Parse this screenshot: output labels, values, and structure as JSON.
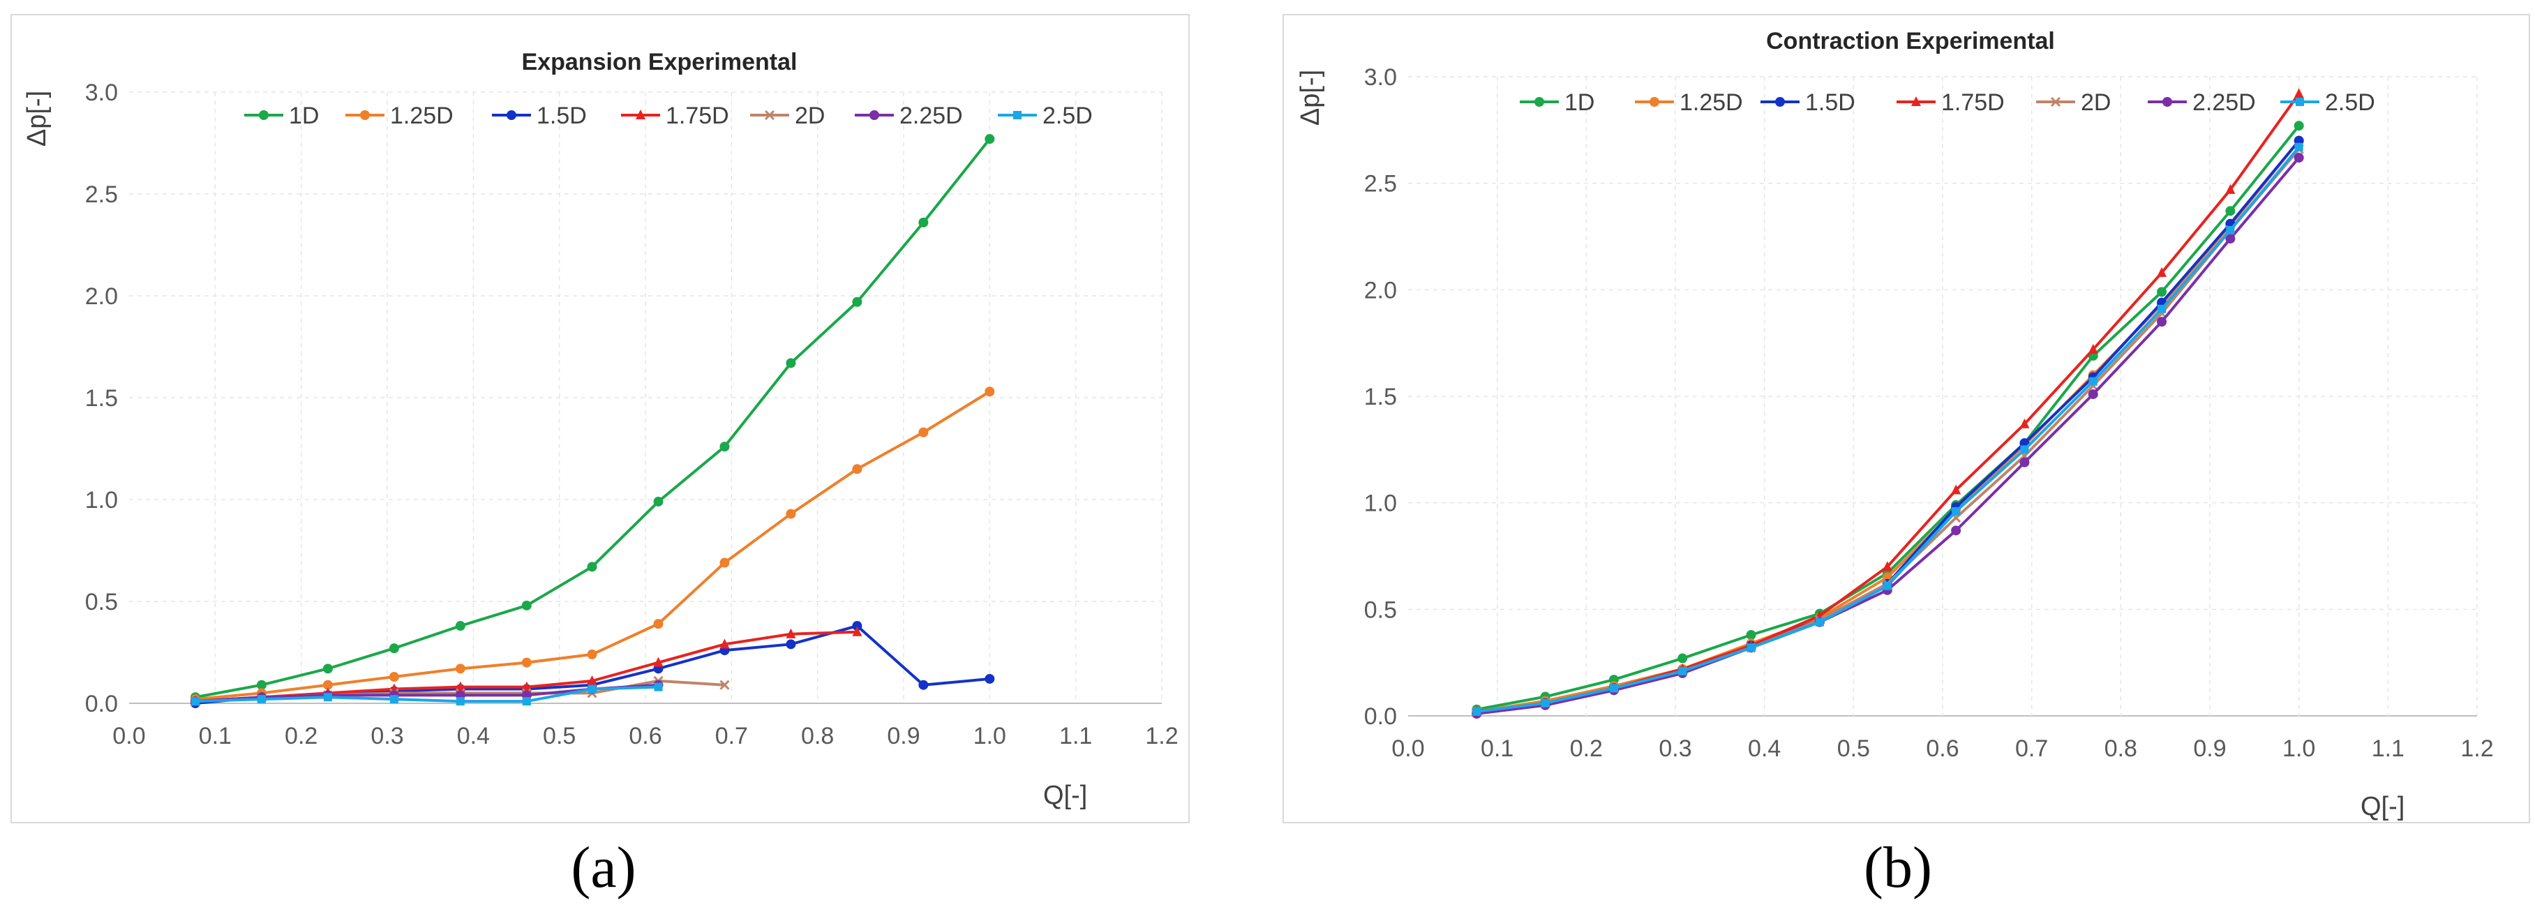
{
  "chart_data": [
    {
      "type": "line",
      "title": "Expansion Experimental",
      "xlabel": "Q[-]",
      "ylabel": "Δp[-]",
      "xlim": [
        0.0,
        1.2
      ],
      "ylim": [
        0.0,
        3.0
      ],
      "xticks": [
        "0.0",
        "0.1",
        "0.2",
        "0.3",
        "0.4",
        "0.5",
        "0.6",
        "0.7",
        "0.8",
        "0.9",
        "1.0",
        "1.1",
        "1.2"
      ],
      "yticks": [
        "0.0",
        "0.5",
        "1.0",
        "1.5",
        "2.0",
        "2.5",
        "3.0"
      ],
      "grid": true,
      "legend_position": "top",
      "series": [
        {
          "name": "1D",
          "color": "#1aa84a",
          "marker": "circle",
          "x": [
            0.077,
            0.154,
            0.231,
            0.308,
            0.385,
            0.462,
            0.538,
            0.615,
            0.692,
            0.769,
            0.846,
            0.923,
            1.0
          ],
          "y": [
            0.03,
            0.09,
            0.17,
            0.27,
            0.38,
            0.48,
            0.67,
            0.99,
            1.26,
            1.67,
            1.97,
            2.36,
            2.77
          ]
        },
        {
          "name": "1.25D",
          "color": "#f07f2a",
          "marker": "circle",
          "x": [
            0.077,
            0.154,
            0.231,
            0.308,
            0.385,
            0.462,
            0.538,
            0.615,
            0.692,
            0.769,
            0.846,
            0.923,
            1.0
          ],
          "y": [
            0.02,
            0.05,
            0.09,
            0.13,
            0.17,
            0.2,
            0.24,
            0.39,
            0.69,
            0.93,
            1.15,
            1.33,
            1.53
          ]
        },
        {
          "name": "1.5D",
          "color": "#1432c8",
          "marker": "circle",
          "x": [
            0.077,
            0.154,
            0.231,
            0.308,
            0.385,
            0.462,
            0.538,
            0.615,
            0.692,
            0.769,
            0.846,
            0.923,
            1.0
          ],
          "y": [
            0.0,
            0.03,
            0.04,
            0.06,
            0.07,
            0.07,
            0.09,
            0.17,
            0.26,
            0.29,
            0.38,
            0.09,
            0.12
          ]
        },
        {
          "name": "1.75D",
          "color": "#e8231f",
          "marker": "triangle",
          "x": [
            0.077,
            0.154,
            0.231,
            0.308,
            0.385,
            0.462,
            0.538,
            0.615,
            0.692,
            0.769,
            0.846
          ],
          "y": [
            0.01,
            0.03,
            0.05,
            0.07,
            0.08,
            0.08,
            0.11,
            0.2,
            0.29,
            0.34,
            0.35
          ]
        },
        {
          "name": "2D",
          "color": "#c0846a",
          "marker": "cross",
          "x": [
            0.077,
            0.154,
            0.231,
            0.308,
            0.385,
            0.462,
            0.538,
            0.615,
            0.692
          ],
          "y": [
            0.01,
            0.03,
            0.04,
            0.05,
            0.05,
            0.05,
            0.05,
            0.11,
            0.09
          ]
        },
        {
          "name": "2.25D",
          "color": "#7a2fa8",
          "marker": "circle",
          "x": [
            0.077,
            0.154,
            0.231,
            0.308,
            0.385,
            0.462,
            0.538,
            0.615
          ],
          "y": [
            0.01,
            0.03,
            0.04,
            0.04,
            0.04,
            0.04,
            0.07,
            0.09
          ]
        },
        {
          "name": "2.5D",
          "color": "#1ba6e8",
          "marker": "square",
          "x": [
            0.077,
            0.154,
            0.231,
            0.308,
            0.385,
            0.462,
            0.538,
            0.615
          ],
          "y": [
            0.01,
            0.02,
            0.03,
            0.02,
            0.01,
            0.01,
            0.07,
            0.08
          ]
        }
      ]
    },
    {
      "type": "line",
      "title": "Contraction Experimental",
      "xlabel": "Q[-]",
      "ylabel": "Δp[-]",
      "xlim": [
        0.0,
        1.2
      ],
      "ylim": [
        0.0,
        3.0
      ],
      "xticks": [
        "0.0",
        "0.1",
        "0.2",
        "0.3",
        "0.4",
        "0.5",
        "0.6",
        "0.7",
        "0.8",
        "0.9",
        "1.0",
        "1.1",
        "1.2"
      ],
      "yticks": [
        "0.0",
        "0.5",
        "1.0",
        "1.5",
        "2.0",
        "2.5",
        "3.0"
      ],
      "grid": true,
      "legend_position": "top",
      "series": [
        {
          "name": "1D",
          "color": "#1aa84a",
          "marker": "circle",
          "x": [
            0.077,
            0.154,
            0.231,
            0.308,
            0.385,
            0.462,
            0.538,
            0.615,
            0.692,
            0.769,
            0.846,
            0.923,
            1.0
          ],
          "y": [
            0.03,
            0.09,
            0.17,
            0.27,
            0.38,
            0.48,
            0.67,
            0.99,
            1.28,
            1.69,
            1.99,
            2.37,
            2.77
          ]
        },
        {
          "name": "1.25D",
          "color": "#f07f2a",
          "marker": "circle",
          "x": [
            0.077,
            0.154,
            0.231,
            0.308,
            0.385,
            0.462,
            0.538,
            0.615,
            0.692,
            0.769,
            0.846,
            0.923,
            1.0
          ],
          "y": [
            0.02,
            0.07,
            0.14,
            0.22,
            0.34,
            0.46,
            0.65,
            0.97,
            1.27,
            1.6,
            1.93,
            2.3,
            2.7
          ]
        },
        {
          "name": "1.5D",
          "color": "#1432c8",
          "marker": "circle",
          "x": [
            0.077,
            0.154,
            0.231,
            0.308,
            0.385,
            0.462,
            0.538,
            0.615,
            0.692,
            0.769,
            0.846,
            0.923,
            1.0
          ],
          "y": [
            0.01,
            0.06,
            0.13,
            0.21,
            0.33,
            0.45,
            0.62,
            0.98,
            1.28,
            1.59,
            1.94,
            2.31,
            2.7
          ]
        },
        {
          "name": "1.75D",
          "color": "#e8231f",
          "marker": "triangle",
          "x": [
            0.077,
            0.154,
            0.231,
            0.308,
            0.385,
            0.462,
            0.538,
            0.615,
            0.692,
            0.769,
            0.846,
            0.923,
            1.0
          ],
          "y": [
            0.02,
            0.06,
            0.13,
            0.22,
            0.33,
            0.47,
            0.7,
            1.06,
            1.37,
            1.72,
            2.08,
            2.47,
            2.92
          ]
        },
        {
          "name": "2D",
          "color": "#c0846a",
          "marker": "cross",
          "x": [
            0.077,
            0.154,
            0.231,
            0.308,
            0.385,
            0.462,
            0.538,
            0.615,
            0.692,
            0.769,
            0.846,
            0.923,
            1.0
          ],
          "y": [
            0.02,
            0.06,
            0.13,
            0.21,
            0.32,
            0.45,
            0.62,
            0.93,
            1.22,
            1.55,
            1.89,
            2.28,
            2.66
          ]
        },
        {
          "name": "2.25D",
          "color": "#7a2fa8",
          "marker": "circle",
          "x": [
            0.077,
            0.154,
            0.231,
            0.308,
            0.385,
            0.462,
            0.538,
            0.615,
            0.692,
            0.769,
            0.846,
            0.923,
            1.0
          ],
          "y": [
            0.01,
            0.05,
            0.12,
            0.2,
            0.32,
            0.44,
            0.59,
            0.87,
            1.19,
            1.51,
            1.85,
            2.24,
            2.62
          ]
        },
        {
          "name": "2.5D",
          "color": "#1ba6e8",
          "marker": "square",
          "x": [
            0.077,
            0.154,
            0.231,
            0.308,
            0.385,
            0.462,
            0.538,
            0.615,
            0.692,
            0.769,
            0.846,
            0.923,
            1.0
          ],
          "y": [
            0.02,
            0.06,
            0.13,
            0.21,
            0.32,
            0.44,
            0.61,
            0.96,
            1.25,
            1.57,
            1.91,
            2.28,
            2.67
          ]
        }
      ]
    }
  ],
  "panels": [
    {
      "label": "(a)"
    },
    {
      "label": "(b)"
    }
  ]
}
